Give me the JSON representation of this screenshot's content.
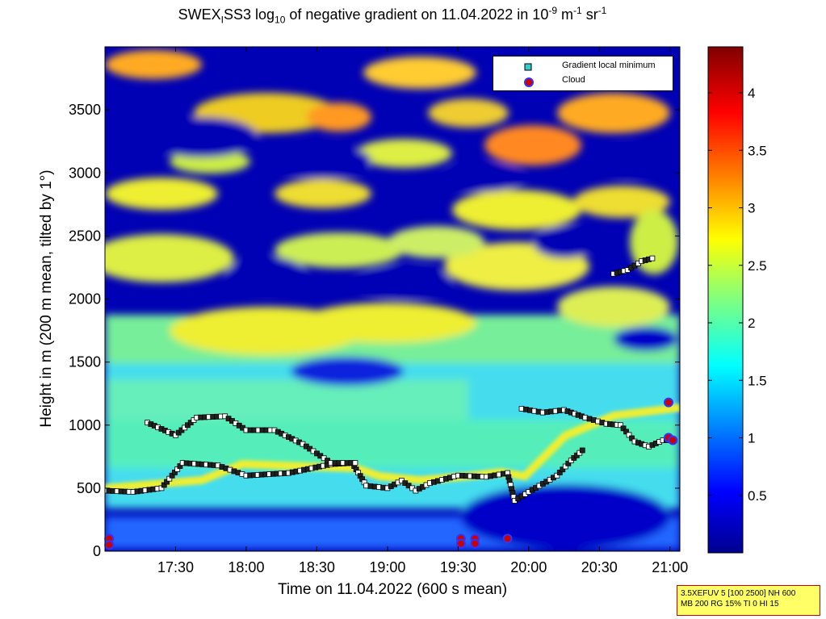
{
  "title": {
    "prefix": "SWEX",
    "sub1": "I",
    "mid1": "SS3 log",
    "sub2": "10",
    "mid2": " of negative gradient on 11.04.2022 in 10",
    "sup1": "-9",
    "mid3": " m",
    "sup2": "-1",
    "mid4": " sr",
    "sup3": "-1"
  },
  "legend": {
    "items": [
      {
        "label": "Gradient local minimum",
        "marker": "square",
        "color": "#33cccc"
      },
      {
        "label": "Cloud",
        "marker": "circle",
        "color": "#cc0000"
      }
    ]
  },
  "info_box": {
    "line1": "3.5XEFUV 5 [100 2500] NH 600",
    "line2": "MB 200 RG 15% TI 0 HI 15"
  },
  "chart_data": {
    "type": "heatmap",
    "title": "SWEX_I SS3 log10 of negative gradient on 11.04.2022 in 10^-9 m^-1 sr^-1",
    "xlabel": "Time on 11.04.2022 (600 s mean)",
    "ylabel": "Height in m (200 m mean, tilted by 1°)",
    "xlim_hours": [
      17.0,
      21.07
    ],
    "ylim": [
      0,
      4000
    ],
    "x_ticks": [
      {
        "label": "17:30",
        "v": 17.5
      },
      {
        "label": "18:00",
        "v": 18.0
      },
      {
        "label": "18:30",
        "v": 18.5
      },
      {
        "label": "19:00",
        "v": 19.0
      },
      {
        "label": "19:30",
        "v": 19.5
      },
      {
        "label": "20:00",
        "v": 20.0
      },
      {
        "label": "20:30",
        "v": 20.5
      },
      {
        "label": "21:00",
        "v": 21.0
      }
    ],
    "y_ticks": [
      {
        "label": "0",
        "v": 0
      },
      {
        "label": "500",
        "v": 500
      },
      {
        "label": "1000",
        "v": 1000
      },
      {
        "label": "1500",
        "v": 1500
      },
      {
        "label": "2000",
        "v": 2000
      },
      {
        "label": "2500",
        "v": 2500
      },
      {
        "label": "3000",
        "v": 3000
      },
      {
        "label": "3500",
        "v": 3500
      }
    ],
    "colorbar": {
      "colormap": "jet",
      "range": [
        0,
        4.4
      ],
      "ticks": [
        {
          "label": "0.5",
          "v": 0.5
        },
        {
          "label": "1",
          "v": 1
        },
        {
          "label": "1.5",
          "v": 1.5
        },
        {
          "label": "2",
          "v": 2
        },
        {
          "label": "2.5",
          "v": 2.5
        },
        {
          "label": "3",
          "v": 3
        },
        {
          "label": "3.5",
          "v": 3.5
        },
        {
          "label": "4",
          "v": 4
        }
      ]
    },
    "gradient_minimum_layers": [
      {
        "name": "layer-low",
        "points": [
          [
            17.0,
            480
          ],
          [
            17.2,
            470
          ],
          [
            17.4,
            500
          ],
          [
            17.55,
            700
          ],
          [
            17.8,
            680
          ],
          [
            18.0,
            600
          ],
          [
            18.3,
            620
          ],
          [
            18.6,
            690
          ],
          [
            18.75,
            700
          ],
          [
            18.85,
            520
          ],
          [
            19.0,
            500
          ],
          [
            19.1,
            560
          ],
          [
            19.2,
            480
          ],
          [
            19.3,
            540
          ],
          [
            19.5,
            600
          ],
          [
            19.7,
            590
          ],
          [
            19.85,
            620
          ],
          [
            19.9,
            400
          ],
          [
            20.0,
            470
          ],
          [
            20.2,
            600
          ],
          [
            20.3,
            720
          ],
          [
            20.4,
            820
          ]
        ]
      },
      {
        "name": "layer-mid",
        "points": [
          [
            17.3,
            1020
          ],
          [
            17.5,
            920
          ],
          [
            17.65,
            1060
          ],
          [
            17.85,
            1070
          ],
          [
            18.0,
            960
          ],
          [
            18.2,
            960
          ],
          [
            18.4,
            850
          ],
          [
            18.6,
            700
          ],
          [
            18.8,
            700
          ]
        ]
      },
      {
        "name": "layer-upper-east",
        "points": [
          [
            19.95,
            1130
          ],
          [
            20.1,
            1100
          ],
          [
            20.25,
            1120
          ],
          [
            20.4,
            1060
          ],
          [
            20.55,
            1010
          ],
          [
            20.65,
            1000
          ],
          [
            20.75,
            870
          ],
          [
            20.85,
            830
          ],
          [
            20.95,
            880
          ],
          [
            21.0,
            880
          ]
        ]
      },
      {
        "name": "layer-2200",
        "points": [
          [
            20.6,
            2200
          ],
          [
            20.7,
            2230
          ],
          [
            20.8,
            2300
          ],
          [
            20.9,
            2330
          ]
        ]
      }
    ],
    "clouds": [
      {
        "x": 17.03,
        "y": 100
      },
      {
        "x": 17.03,
        "y": 50
      },
      {
        "x": 19.52,
        "y": 100
      },
      {
        "x": 19.52,
        "y": 60
      },
      {
        "x": 19.62,
        "y": 100
      },
      {
        "x": 19.62,
        "y": 60
      },
      {
        "x": 19.85,
        "y": 100
      },
      {
        "x": 20.99,
        "y": 1180
      },
      {
        "x": 20.99,
        "y": 900
      },
      {
        "x": 21.02,
        "y": 880
      }
    ]
  }
}
